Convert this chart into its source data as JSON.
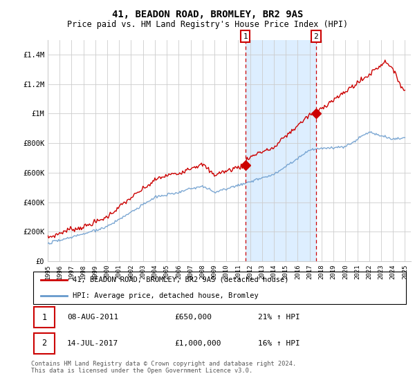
{
  "title": "41, BEADON ROAD, BROMLEY, BR2 9AS",
  "subtitle": "Price paid vs. HM Land Registry's House Price Index (HPI)",
  "ylabel_ticks": [
    "£0",
    "£200K",
    "£400K",
    "£600K",
    "£800K",
    "£1M",
    "£1.2M",
    "£1.4M"
  ],
  "ylabel_values": [
    0,
    200000,
    400000,
    600000,
    800000,
    1000000,
    1200000,
    1400000
  ],
  "ylim": [
    0,
    1500000
  ],
  "xlim": [
    1995,
    2025.5
  ],
  "marker1_x": 2011.6,
  "marker1_y": 650000,
  "marker1_label": "1",
  "marker2_x": 2017.54,
  "marker2_y": 1000000,
  "marker2_label": "2",
  "vline1_x": 2011.6,
  "vline2_x": 2017.54,
  "bg_shade_x1": 2011.6,
  "bg_shade_x2": 2017.54,
  "legend_line1": "41, BEADON ROAD, BROMLEY, BR2 9AS (detached house)",
  "legend_line2": "HPI: Average price, detached house, Bromley",
  "table_row1": [
    "1",
    "08-AUG-2011",
    "£650,000",
    "21% ↑ HPI"
  ],
  "table_row2": [
    "2",
    "14-JUL-2017",
    "£1,000,000",
    "16% ↑ HPI"
  ],
  "footnote": "Contains HM Land Registry data © Crown copyright and database right 2024.\nThis data is licensed under the Open Government Licence v3.0.",
  "red_color": "#cc0000",
  "blue_color": "#6699cc",
  "shade_color": "#ddeeff",
  "grid_color": "#cccccc",
  "vline_color": "#cc0000",
  "title_fontsize": 10,
  "subtitle_fontsize": 8.5
}
